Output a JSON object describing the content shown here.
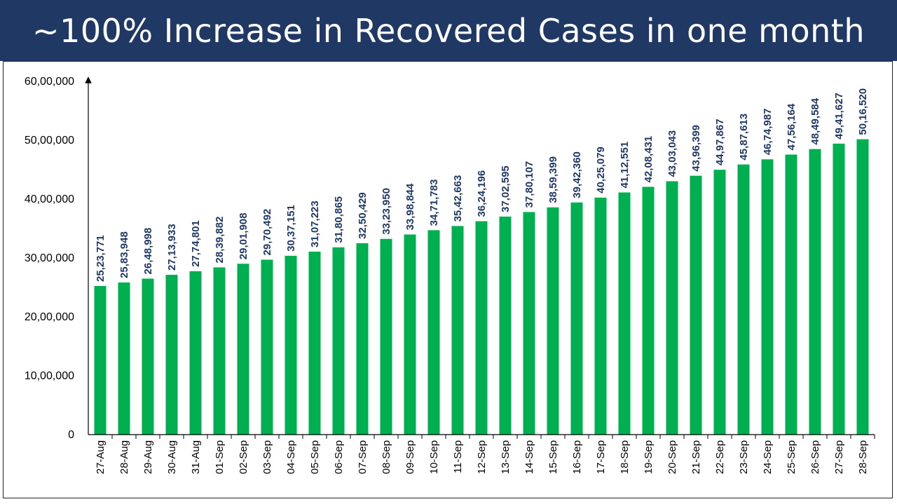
{
  "header": {
    "title": "~100% Increase in Recovered Cases in one month"
  },
  "colors": {
    "header_bg": "#1f3864",
    "bar": "#00b050",
    "label": "#1f3864"
  },
  "chart_data": {
    "type": "bar",
    "title": "~100% Increase in Recovered Cases in one month",
    "xlabel": "",
    "ylabel": "",
    "ylim": [
      0,
      6000000
    ],
    "y_ticks": [
      0,
      1000000,
      2000000,
      3000000,
      4000000,
      5000000,
      6000000
    ],
    "y_tick_labels": [
      "0",
      "10,00,000",
      "20,00,000",
      "30,00,000",
      "40,00,000",
      "50,00,000",
      "60,00,000"
    ],
    "grid": false,
    "legend": "none",
    "categories": [
      "27-Aug",
      "28-Aug",
      "29-Aug",
      "30-Aug",
      "31-Aug",
      "01-Sep",
      "02-Sep",
      "03-Sep",
      "04-Sep",
      "05-Sep",
      "06-Sep",
      "07-Sep",
      "08-Sep",
      "09-Sep",
      "10-Sep",
      "11-Sep",
      "12-Sep",
      "13-Sep",
      "14-Sep",
      "15-Sep",
      "16-Sep",
      "17-Sep",
      "18-Sep",
      "19-Sep",
      "20-Sep",
      "21-Sep",
      "22-Sep",
      "23-Sep",
      "24-Sep",
      "25-Sep",
      "26-Sep",
      "27-Sep",
      "28-Sep"
    ],
    "values": [
      2523771,
      2583948,
      2648998,
      2713933,
      2774801,
      2839882,
      2901908,
      2970492,
      3037151,
      3107223,
      3180865,
      3250429,
      3323950,
      3398844,
      3471783,
      3542663,
      3624196,
      3702595,
      3780107,
      3859399,
      3942360,
      4025079,
      4112551,
      4208431,
      4303043,
      4396399,
      4497867,
      4587613,
      4674987,
      4756164,
      4849584,
      4941627,
      5016520
    ],
    "value_labels": [
      "25,23,771",
      "25,83,948",
      "26,48,998",
      "27,13,933",
      "27,74,801",
      "28,39,882",
      "29,01,908",
      "29,70,492",
      "30,37,151",
      "31,07,223",
      "31,80,865",
      "32,50,429",
      "33,23,950",
      "33,98,844",
      "34,71,783",
      "35,42,663",
      "36,24,196",
      "37,02,595",
      "37,80,107",
      "38,59,399",
      "39,42,360",
      "40,25,079",
      "41,12,551",
      "42,08,431",
      "43,03,043",
      "43,96,399",
      "44,97,867",
      "45,87,613",
      "46,74,987",
      "47,56,164",
      "48,49,584",
      "49,41,627",
      "50,16,520"
    ]
  }
}
